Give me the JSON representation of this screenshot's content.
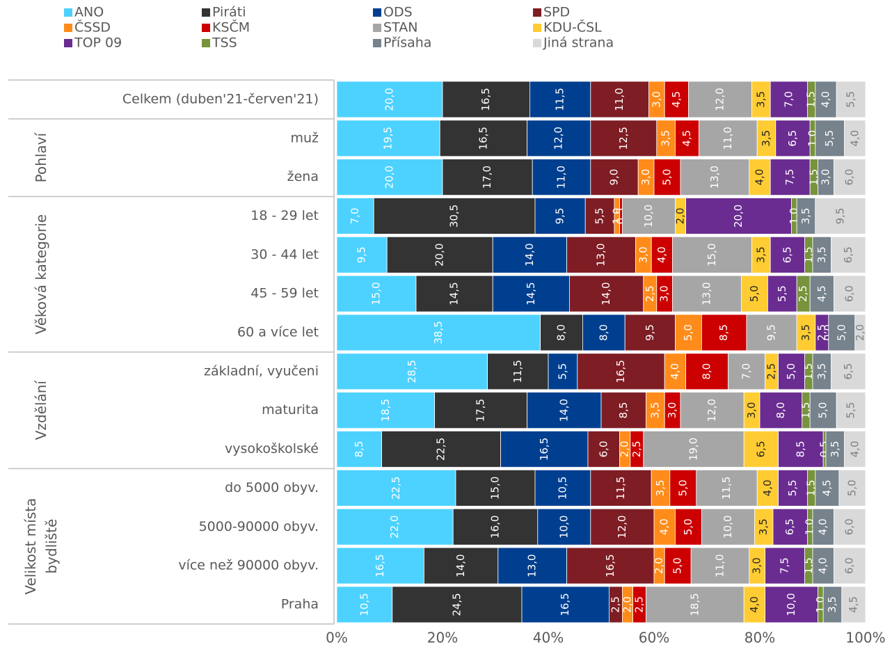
{
  "chart_data": {
    "type": "stacked-bar-horizontal",
    "groups": [
      {
        "name": null,
        "categories": [
          "Celkem (duben'21-červen'21)"
        ]
      },
      {
        "name": "Pohlaví",
        "categories": [
          "muž",
          "žena"
        ]
      },
      {
        "name": "Věková kategorie",
        "categories": [
          "18 - 29 let",
          "30 - 44 let",
          "45 - 59 let",
          "60 a více let"
        ]
      },
      {
        "name": "Vzdělání",
        "categories": [
          "základní, vyučeni",
          "maturita",
          "vysokoškolské"
        ]
      },
      {
        "name": "Velikost místa\nbydliště",
        "categories": [
          "do 5000 obyv.",
          "5000-90000 obyv.",
          "více než 90000 obyv.",
          "Praha"
        ]
      }
    ],
    "series": [
      {
        "name": "ANO",
        "color": "#4dd2ff",
        "label_color": "#ffffff",
        "values": [
          20.0,
          19.5,
          20.0,
          7.0,
          9.5,
          15.0,
          38.5,
          28.5,
          18.5,
          8.5,
          22.5,
          22.0,
          16.5,
          10.5
        ],
        "value_labels": [
          "20,0",
          "19,5",
          "20,0",
          "7,0",
          "9,5",
          "15,0",
          "38,5",
          "28,5",
          "18,5",
          "8,5",
          "22,5",
          "22,0",
          "16,5",
          "10,5"
        ]
      },
      {
        "name": "Piráti",
        "color": "#333333",
        "label_color": "#ffffff",
        "values": [
          16.5,
          16.5,
          17.0,
          30.5,
          20.0,
          14.5,
          8.0,
          11.5,
          17.5,
          22.5,
          15.0,
          16.0,
          14.0,
          24.5
        ],
        "value_labels": [
          "16,5",
          "16,5",
          "17,0",
          "30,5",
          "20,0",
          "14,5",
          "8,0",
          "11,5",
          "17,5",
          "22,5",
          "15,0",
          "16,0",
          "14,0",
          "24,5"
        ]
      },
      {
        "name": "ODS",
        "color": "#003f8f",
        "label_color": "#ffffff",
        "values": [
          11.5,
          12.0,
          11.0,
          9.5,
          14.0,
          14.5,
          8.0,
          5.5,
          14.0,
          16.5,
          10.5,
          10.0,
          13.0,
          16.5
        ],
        "value_labels": [
          "11,5",
          "12,0",
          "11,0",
          "9,5",
          "14,0",
          "14,5",
          "8,0",
          "5,5",
          "14,0",
          "16,5",
          "10,5",
          "10,0",
          "13,0",
          "16,5"
        ]
      },
      {
        "name": "SPD",
        "color": "#7f1d24",
        "label_color": "#ffffff",
        "values": [
          11.0,
          12.5,
          9.0,
          5.5,
          13.0,
          14.0,
          9.5,
          16.5,
          8.5,
          6.0,
          11.5,
          12.0,
          16.5,
          2.5
        ],
        "value_labels": [
          "11,0",
          "12,5",
          "9,0",
          "5,5",
          "13,0",
          "14,0",
          "9,5",
          "16,5",
          "8,5",
          "6,0",
          "11,5",
          "12,0",
          "16,5",
          "2,5"
        ]
      },
      {
        "name": "ČSSD",
        "color": "#ff8c1a",
        "label_color": "#ffffff",
        "values": [
          3.0,
          3.5,
          3.0,
          1.0,
          3.0,
          2.5,
          5.0,
          4.0,
          3.5,
          2.0,
          3.5,
          4.0,
          2.0,
          2.0
        ],
        "value_labels": [
          "3,0",
          "3,5",
          "3,0",
          "1,0",
          "3,0",
          "2,5",
          "5,0",
          "4,0",
          "3,5",
          "2,0",
          "3,5",
          "4,0",
          "2,0",
          "2,0"
        ]
      },
      {
        "name": "KSČM",
        "color": "#cc0000",
        "label_color": "#ffffff",
        "values": [
          4.5,
          4.5,
          5.0,
          0.5,
          4.0,
          3.0,
          8.5,
          8.0,
          3.0,
          2.5,
          5.0,
          5.0,
          5.0,
          2.5
        ],
        "value_labels": [
          "4,5",
          "4,5",
          "5,0",
          "0,5",
          "4,0",
          "3,0",
          "8,5",
          "8,0",
          "3,0",
          "2,5",
          "5,0",
          "5,0",
          "5,0",
          "2,5"
        ]
      },
      {
        "name": "STAN",
        "color": "#a6a6a6",
        "label_color": "#ffffff",
        "values": [
          12.0,
          11.0,
          13.0,
          10.0,
          15.0,
          13.0,
          9.5,
          7.0,
          12.0,
          19.0,
          11.5,
          10.0,
          11.0,
          18.5
        ],
        "value_labels": [
          "12,0",
          "11,0",
          "13,0",
          "10,0",
          "15,0",
          "13,0",
          "9,5",
          "7,0",
          "12,0",
          "19,0",
          "11,5",
          "10,0",
          "11,0",
          "18,5"
        ]
      },
      {
        "name": "KDU-ČSL",
        "color": "#ffcc33",
        "label_color": "#262626",
        "values": [
          3.5,
          3.5,
          4.0,
          2.0,
          3.5,
          5.0,
          3.5,
          2.5,
          3.0,
          6.5,
          4.0,
          3.5,
          3.0,
          4.0
        ],
        "value_labels": [
          "3,5",
          "3,5",
          "4,0",
          "2,0",
          "3,5",
          "5,0",
          "3,5",
          "2,5",
          "3,0",
          "6,5",
          "4,0",
          "3,5",
          "3,0",
          "4,0"
        ]
      },
      {
        "name": "TOP 09",
        "color": "#6a2c91",
        "label_color": "#ffffff",
        "values": [
          7.0,
          6.5,
          7.5,
          20.0,
          6.5,
          5.5,
          2.5,
          5.0,
          8.0,
          8.5,
          5.5,
          6.5,
          7.5,
          10.0
        ],
        "value_labels": [
          "7,0",
          "6,5",
          "7,5",
          "20,0",
          "6,5",
          "5,5",
          "2,5",
          "5,0",
          "8,0",
          "8,5",
          "5,5",
          "6,5",
          "7,5",
          "10,0"
        ]
      },
      {
        "name": "TSS",
        "color": "#77933c",
        "label_color": "#ffffff",
        "values": [
          1.5,
          1.0,
          1.5,
          1.0,
          1.5,
          2.5,
          0.0,
          1.5,
          1.5,
          0.5,
          1.5,
          1.0,
          1.5,
          1.0
        ],
        "value_labels": [
          "1,5",
          "1,0",
          "1,5",
          "1,0",
          "1,5",
          "2,5",
          "0,0",
          "1,5",
          "1,5",
          "0,5",
          "1,5",
          "1,0",
          "1,5",
          "1,0"
        ]
      },
      {
        "name": "Přísaha",
        "color": "#76828c",
        "label_color": "#ffffff",
        "values": [
          4.0,
          5.5,
          3.0,
          3.5,
          3.5,
          4.5,
          5.0,
          3.5,
          5.0,
          3.5,
          4.5,
          4.0,
          4.0,
          3.5
        ],
        "value_labels": [
          "4,0",
          "5,5",
          "3,0",
          "3,5",
          "3,5",
          "4,5",
          "5,0",
          "3,5",
          "5,0",
          "3,5",
          "4,5",
          "4,0",
          "4,0",
          "3,5"
        ]
      },
      {
        "name": "Jiná strana",
        "color": "#d9d9d9",
        "label_color": "#7f7f7f",
        "values": [
          5.5,
          4.0,
          6.0,
          9.5,
          6.5,
          6.0,
          2.0,
          6.5,
          5.5,
          4.0,
          5.0,
          6.0,
          6.0,
          4.5
        ],
        "value_labels": [
          "5,5",
          "4,0",
          "6,0",
          "9,5",
          "6,5",
          "6,0",
          "2,0",
          "6,5",
          "5,5",
          "4,0",
          "5,0",
          "6,0",
          "6,0",
          "4,5"
        ]
      }
    ],
    "xlim": [
      0,
      100
    ],
    "xticks": [
      {
        "value": 0,
        "label": "0%"
      },
      {
        "value": 20,
        "label": "20%"
      },
      {
        "value": 40,
        "label": "40%"
      },
      {
        "value": 60,
        "label": "60%"
      },
      {
        "value": 80,
        "label": "80%"
      },
      {
        "value": 100,
        "label": "100%"
      }
    ],
    "legend": "top"
  }
}
